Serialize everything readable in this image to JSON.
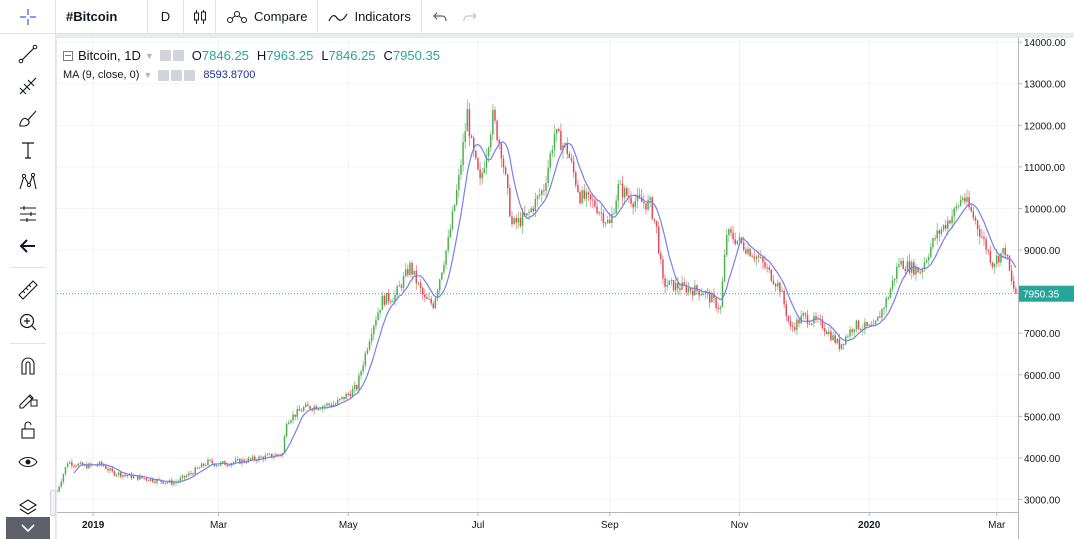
{
  "toolbar": {
    "symbol": "#Bitcoin",
    "interval": "D",
    "compare_label": "Compare",
    "indicators_label": "Indicators"
  },
  "left_tools": [
    "crosshair-icon",
    "trend-line-icon",
    "fib-retracement-icon",
    "brush-icon",
    "text-icon",
    "pattern-icon",
    "forecast-icon",
    "back-arrow-icon",
    "ruler-icon",
    "zoom-in-icon",
    "magnet-icon",
    "lock-drawing-icon",
    "unlock-icon",
    "eye-icon",
    "layers-icon",
    "chevron-down-icon"
  ],
  "legend": {
    "title": "Bitcoin, 1D",
    "o_label": "O",
    "o_value": "7846.25",
    "h_label": "H",
    "h_value": "7963.25",
    "l_label": "L",
    "l_value": "7846.25",
    "c_label": "C",
    "c_value": "7950.35",
    "ma_label": "MA (9, close, 0)",
    "ma_value": "8593.8700"
  },
  "colors": {
    "up": "#26a69a",
    "candle_up": "#4caf50",
    "candle_down": "#e04a55",
    "ma_line": "#7b7ee8",
    "price_line": "#26a69a",
    "grid": "#f0f3fa"
  },
  "chart_data": {
    "type": "candlestick",
    "title": "Bitcoin, 1D",
    "last_price": 7950.35,
    "last_price_label": "7950.35",
    "ylim": [
      2700,
      14100
    ],
    "y_ticks": [
      3000,
      4000,
      5000,
      6000,
      7000,
      8000,
      9000,
      10000,
      11000,
      12000,
      13000,
      14000
    ],
    "y_tick_labels": [
      "3000.00",
      "4000.00",
      "5000.00",
      "6000.00",
      "7000.00",
      "8000.00",
      "9000.00",
      "10000.00",
      "11000.00",
      "12000.00",
      "13000.00",
      "14000.00"
    ],
    "x_start": "2018-12-15",
    "x_end": "2020-03-11",
    "x_ticks": [
      {
        "date": "2019-01-01",
        "label": "2019",
        "bold": true
      },
      {
        "date": "2019-03-01",
        "label": "Mar",
        "bold": false
      },
      {
        "date": "2019-05-01",
        "label": "May",
        "bold": false
      },
      {
        "date": "2019-07-01",
        "label": "Jul",
        "bold": false
      },
      {
        "date": "2019-09-01",
        "label": "Sep",
        "bold": false
      },
      {
        "date": "2019-11-01",
        "label": "Nov",
        "bold": false
      },
      {
        "date": "2020-01-01",
        "label": "2020",
        "bold": true
      },
      {
        "date": "2020-03-01",
        "label": "Mar",
        "bold": false
      }
    ],
    "grid": true,
    "ma_period": 9,
    "approx_close_series": [
      [
        "2018-12-15",
        3200
      ],
      [
        "2018-12-20",
        3900
      ],
      [
        "2018-12-28",
        3800
      ],
      [
        "2019-01-05",
        3850
      ],
      [
        "2019-01-10",
        3650
      ],
      [
        "2019-01-20",
        3550
      ],
      [
        "2019-02-01",
        3450
      ],
      [
        "2019-02-08",
        3400
      ],
      [
        "2019-02-15",
        3600
      ],
      [
        "2019-02-24",
        3900
      ],
      [
        "2019-03-01",
        3850
      ],
      [
        "2019-03-15",
        3950
      ],
      [
        "2019-03-31",
        4100
      ],
      [
        "2019-04-02",
        4900
      ],
      [
        "2019-04-10",
        5200
      ],
      [
        "2019-04-25",
        5300
      ],
      [
        "2019-05-05",
        5700
      ],
      [
        "2019-05-12",
        7100
      ],
      [
        "2019-05-17",
        7800
      ],
      [
        "2019-05-23",
        7900
      ],
      [
        "2019-05-30",
        8600
      ],
      [
        "2019-06-06",
        7800
      ],
      [
        "2019-06-10",
        7700
      ],
      [
        "2019-06-17",
        9200
      ],
      [
        "2019-06-22",
        10700
      ],
      [
        "2019-06-26",
        12300
      ],
      [
        "2019-06-28",
        11500
      ],
      [
        "2019-07-02",
        10600
      ],
      [
        "2019-07-08",
        12200
      ],
      [
        "2019-07-12",
        11400
      ],
      [
        "2019-07-17",
        9600
      ],
      [
        "2019-07-24",
        9800
      ],
      [
        "2019-08-01",
        10500
      ],
      [
        "2019-08-06",
        11800
      ],
      [
        "2019-08-12",
        11400
      ],
      [
        "2019-08-18",
        10300
      ],
      [
        "2019-08-25",
        10100
      ],
      [
        "2019-09-01",
        9600
      ],
      [
        "2019-09-05",
        10500
      ],
      [
        "2019-09-12",
        10200
      ],
      [
        "2019-09-20",
        10100
      ],
      [
        "2019-09-23",
        9500
      ],
      [
        "2019-09-26",
        8200
      ],
      [
        "2019-10-05",
        8100
      ],
      [
        "2019-10-15",
        8000
      ],
      [
        "2019-10-23",
        7600
      ],
      [
        "2019-10-26",
        9400
      ],
      [
        "2019-11-01",
        9200
      ],
      [
        "2019-11-10",
        8800
      ],
      [
        "2019-11-20",
        8100
      ],
      [
        "2019-11-25",
        7100
      ],
      [
        "2019-12-01",
        7400
      ],
      [
        "2019-12-10",
        7200
      ],
      [
        "2019-12-18",
        6700
      ],
      [
        "2019-12-25",
        7200
      ],
      [
        "2020-01-03",
        7100
      ],
      [
        "2020-01-10",
        7900
      ],
      [
        "2020-01-15",
        8700
      ],
      [
        "2020-01-25",
        8500
      ],
      [
        "2020-02-01",
        9300
      ],
      [
        "2020-02-10",
        9900
      ],
      [
        "2020-02-14",
        10300
      ],
      [
        "2020-02-20",
        9700
      ],
      [
        "2020-02-28",
        8700
      ],
      [
        "2020-03-05",
        9000
      ],
      [
        "2020-03-08",
        8200
      ],
      [
        "2020-03-10",
        7950
      ]
    ]
  }
}
